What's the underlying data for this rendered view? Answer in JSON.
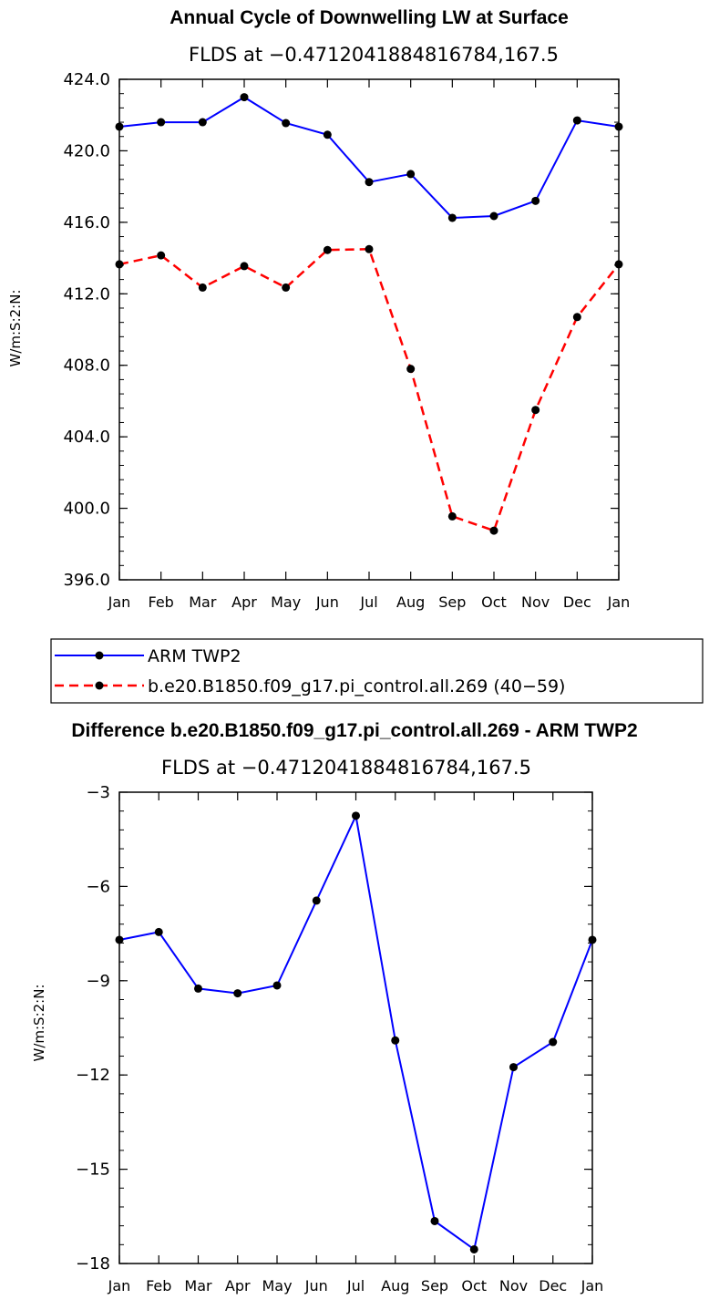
{
  "chart_data": [
    {
      "type": "line",
      "title": "Annual Cycle of Downwelling LW at Surface",
      "subtitle": "FLDS at −0.4712041884816784,167.5",
      "ylabel": "W/m:S:2:N:",
      "xlabel": "",
      "categories": [
        "Jan",
        "Feb",
        "Mar",
        "Apr",
        "May",
        "Jun",
        "Jul",
        "Aug",
        "Sep",
        "Oct",
        "Nov",
        "Dec",
        "Jan"
      ],
      "ylim": [
        396.0,
        424.0
      ],
      "yticks": [
        "396.0",
        "400.0",
        "404.0",
        "408.0",
        "412.0",
        "416.0",
        "420.0",
        "424.0"
      ],
      "series": [
        {
          "name": "ARM TWP2",
          "color": "#0000ff",
          "dash": "solid",
          "values": [
            421.35,
            421.6,
            421.6,
            423.0,
            421.55,
            420.9,
            418.25,
            418.7,
            416.25,
            416.35,
            417.2,
            421.7,
            421.35
          ]
        },
        {
          "name": "b.e20.B1850.f09_g17.pi_control.all.269 (40−59)",
          "color": "#ff0000",
          "dash": "dashed",
          "values": [
            413.65,
            414.15,
            412.35,
            413.55,
            412.35,
            414.45,
            414.5,
            407.8,
            399.55,
            398.75,
            405.5,
            410.7,
            413.65
          ]
        }
      ],
      "legend": "below"
    },
    {
      "type": "line",
      "title": "Difference b.e20.B1850.f09_g17.pi_control.all.269 - ARM TWP2",
      "subtitle": "FLDS at −0.4712041884816784,167.5",
      "ylabel": "W/m:S:2:N:",
      "xlabel": "",
      "categories": [
        "Jan",
        "Feb",
        "Mar",
        "Apr",
        "May",
        "Jun",
        "Jul",
        "Aug",
        "Sep",
        "Oct",
        "Nov",
        "Dec",
        "Jan"
      ],
      "ylim": [
        -18,
        -3
      ],
      "yticks": [
        "−18",
        "−15",
        "−12",
        "−9",
        "−6",
        "−3"
      ],
      "series": [
        {
          "color": "#0000ff",
          "dash": "solid",
          "values": [
            -7.7,
            -7.45,
            -9.25,
            -9.4,
            -9.15,
            -6.45,
            -3.75,
            -10.9,
            -16.65,
            -17.55,
            -11.75,
            -10.95,
            -7.7
          ]
        }
      ]
    }
  ]
}
